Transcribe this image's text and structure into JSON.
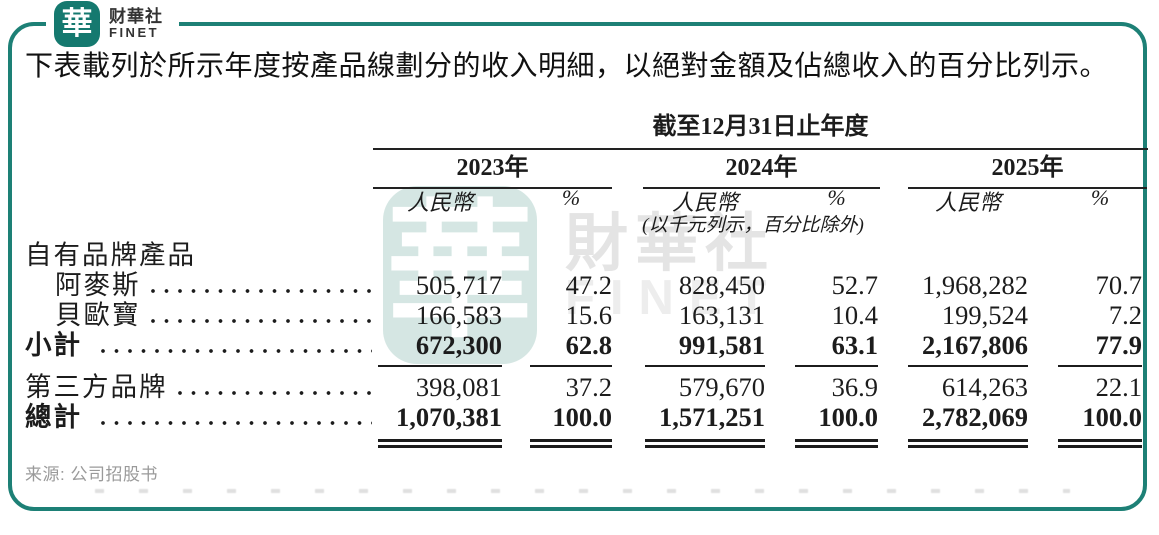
{
  "brand": {
    "seal_char": "華",
    "name_zh": "财華社",
    "name_en": "FINET"
  },
  "intro": "下表載列於所示年度按產品線劃分的收入明細，以絕對金額及佔總收入的百分比列示。",
  "table": {
    "period_header": "截至12月31日止年度",
    "years": [
      "2023年",
      "2024年",
      "2025年"
    ],
    "rmb_label": "人民幣",
    "pct_label": "%",
    "unit_note": "(以千元列示，百分比除外)",
    "rows": [
      {
        "label": "自有品牌產品",
        "values": [
          "",
          "",
          "",
          "",
          "",
          ""
        ]
      },
      {
        "label": "阿麥斯",
        "values": [
          "505,717",
          "47.2",
          "828,450",
          "52.7",
          "1,968,282",
          "70.7"
        ]
      },
      {
        "label": "貝歐寶",
        "values": [
          "166,583",
          "15.6",
          "163,131",
          "10.4",
          "199,524",
          "7.2"
        ]
      },
      {
        "label": "小計 ",
        "values": [
          "672,300",
          "62.8",
          "991,581",
          "63.1",
          "2,167,806",
          "77.9"
        ]
      },
      {
        "label": "第三方品牌",
        "values": [
          "398,081",
          "37.2",
          "579,670",
          "36.9",
          "614,263",
          "22.1"
        ]
      },
      {
        "label": "總計 ",
        "values": [
          "1,070,381",
          "100.0",
          "1,571,251",
          "100.0",
          "2,782,069",
          "100.0"
        ]
      }
    ]
  },
  "source": "来源: 公司招股书",
  "watermark": {
    "seal_char": "華",
    "text_zh": "財華社",
    "text_en": "FINET"
  },
  "colors": {
    "accent_teal": "#1d8076",
    "logo_teal": "#15796f",
    "text": "#1c1c1c",
    "source_gray": "#9a9a9a",
    "watermark_seal": "#9cc5bd",
    "watermark_text": "#e4e4e4"
  }
}
